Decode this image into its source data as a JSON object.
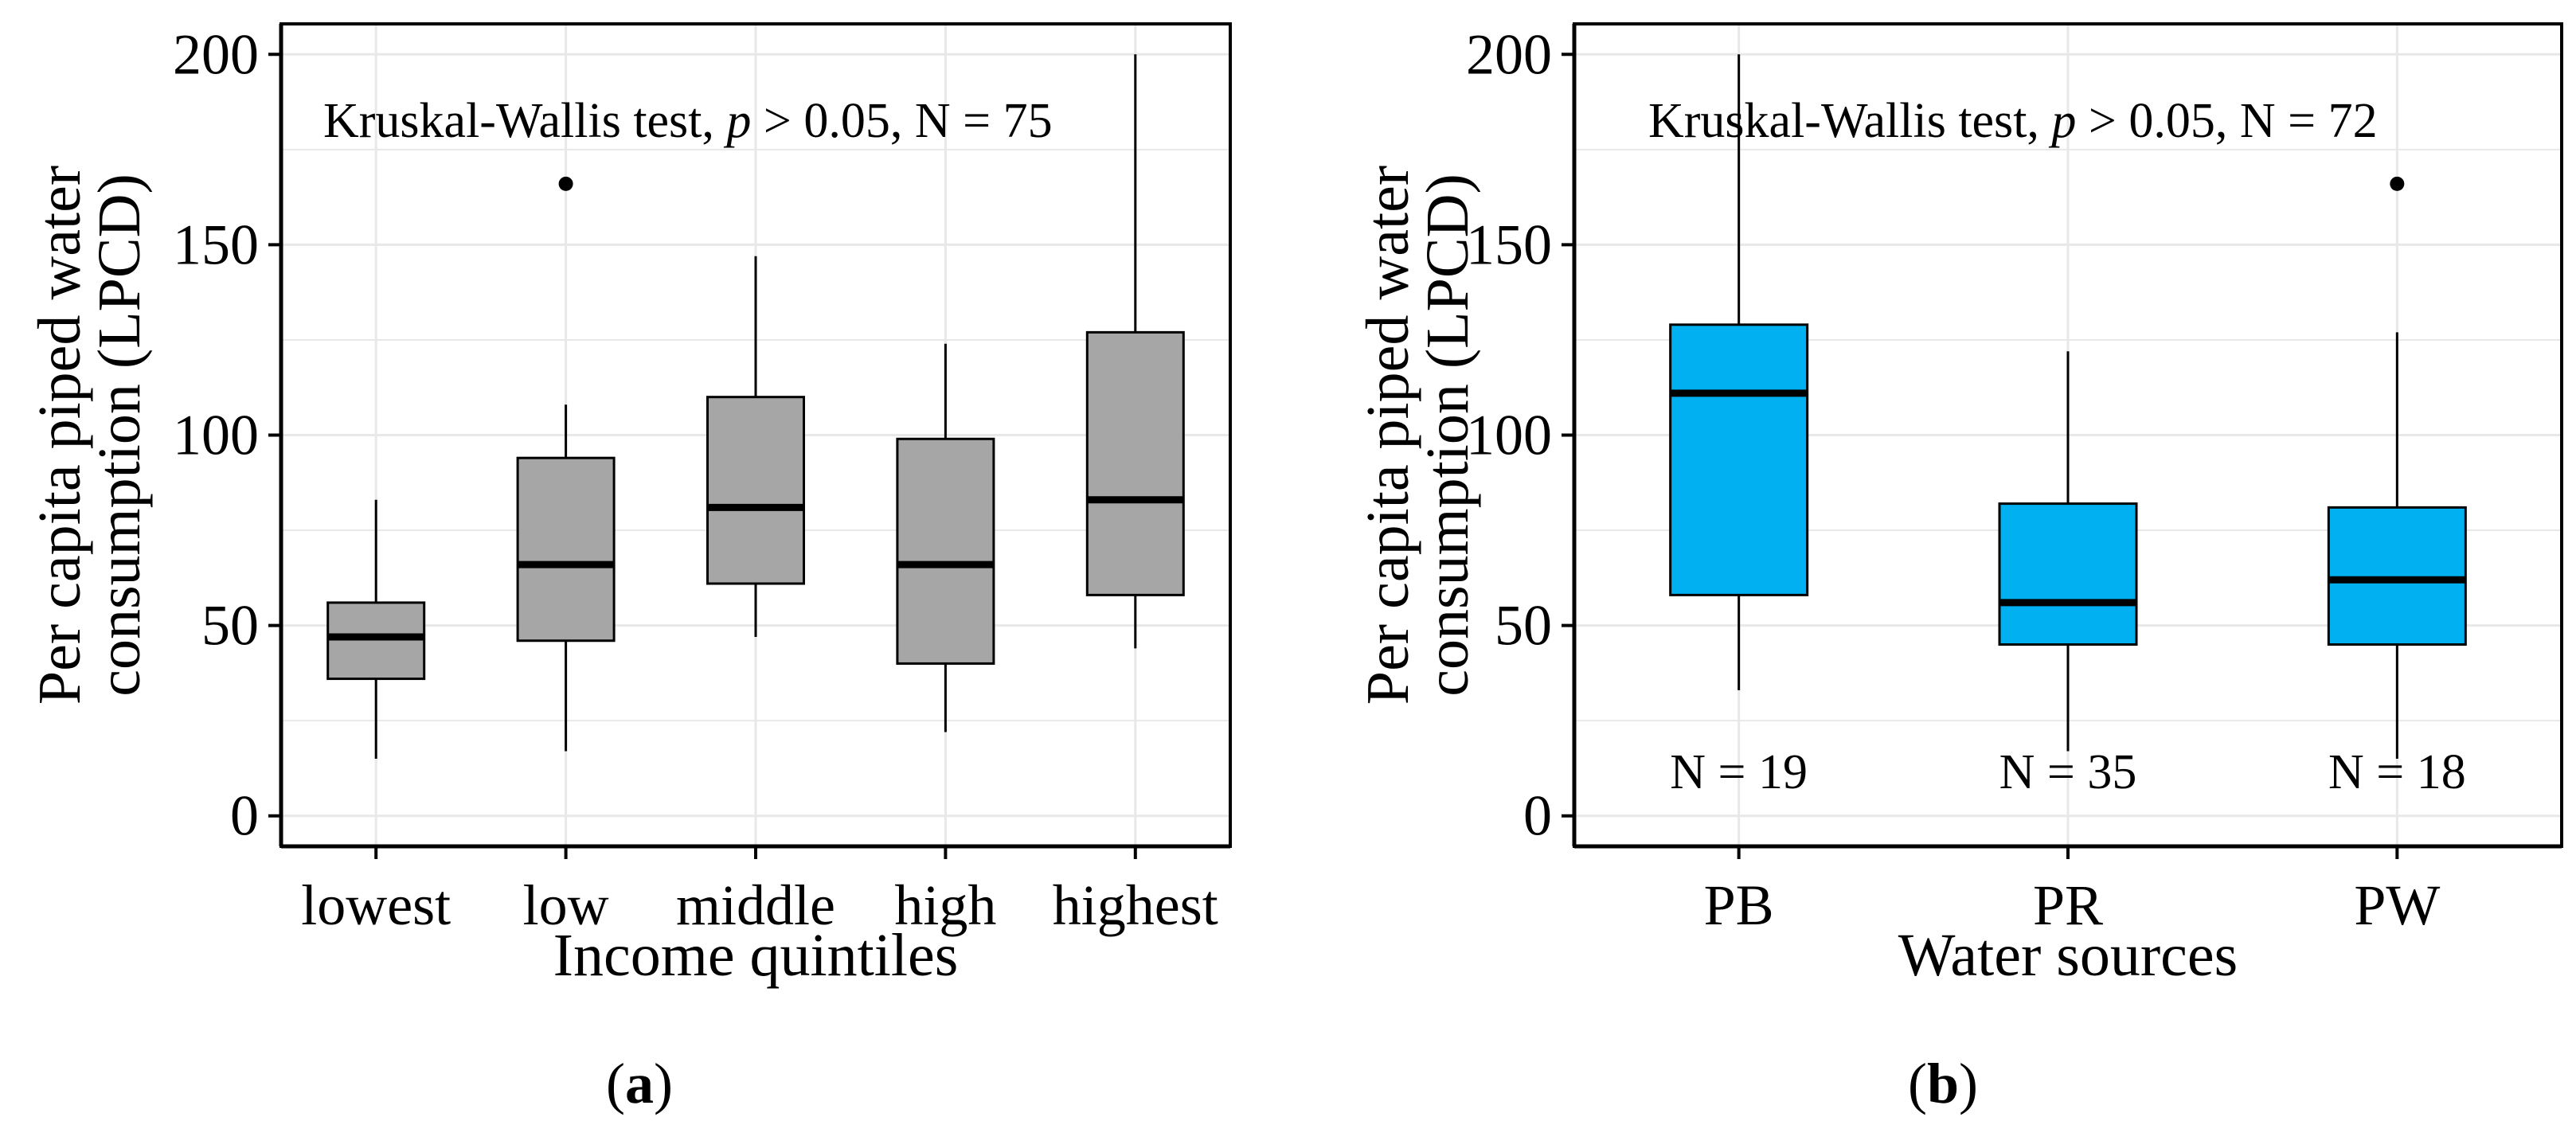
{
  "colors": {
    "grid": "#e8e8e8",
    "axis": "#000000",
    "panel_a_box": "#a6a6a6",
    "panel_b_box": "#00b0f0",
    "median": "#000000"
  },
  "chart_data": [
    {
      "type": "boxplot",
      "panel_label": "(a)",
      "panel_label_parts": [
        "(",
        "a",
        ")"
      ],
      "xlabel": "Income quintiles",
      "ylabel_lines": [
        "Per capita piped water",
        "consumption (LPCD)"
      ],
      "ylim": [
        -8,
        208
      ],
      "yticks": [
        0,
        50,
        100,
        150,
        200
      ],
      "ytick_labels": [
        "0",
        "50",
        "100",
        "150",
        "200"
      ],
      "grid": true,
      "annotation": {
        "prefix": "Kruskal-Wallis test, ",
        "p": "p",
        "suffix": " > 0.05, N = 75"
      },
      "categories": [
        "lowest",
        "low",
        "middle",
        "high",
        "highest"
      ],
      "boxes": [
        {
          "category": "lowest",
          "whisker_low": 15,
          "q1": 36,
          "median": 47,
          "q3": 56,
          "whisker_high": 83,
          "outliers": []
        },
        {
          "category": "low",
          "whisker_low": 17,
          "q1": 46,
          "median": 66,
          "q3": 94,
          "whisker_high": 108,
          "outliers": [
            166
          ]
        },
        {
          "category": "middle",
          "whisker_low": 47,
          "q1": 61,
          "median": 81,
          "q3": 110,
          "whisker_high": 147,
          "outliers": []
        },
        {
          "category": "high",
          "whisker_low": 22,
          "q1": 40,
          "median": 66,
          "q3": 99,
          "whisker_high": 124,
          "outliers": []
        },
        {
          "category": "highest",
          "whisker_low": 44,
          "q1": 58,
          "median": 83,
          "q3": 127,
          "whisker_high": 200,
          "outliers": []
        }
      ],
      "group_counts": []
    },
    {
      "type": "boxplot",
      "panel_label": "(b)",
      "panel_label_parts": [
        "(",
        "b",
        ")"
      ],
      "xlabel": "Water sources",
      "ylabel_lines": [
        "Per capita piped water",
        "consumption (LPCD)"
      ],
      "ylim": [
        -8,
        208
      ],
      "yticks": [
        0,
        50,
        100,
        150,
        200
      ],
      "ytick_labels": [
        "0",
        "50",
        "100",
        "150",
        "200"
      ],
      "grid": true,
      "annotation": {
        "prefix": "Kruskal-Wallis test, ",
        "p": "p",
        "suffix": " > 0.05, N = 72"
      },
      "categories": [
        "PB",
        "PR",
        "PW"
      ],
      "boxes": [
        {
          "category": "PB",
          "whisker_low": 33,
          "q1": 58,
          "median": 111,
          "q3": 129,
          "whisker_high": 200,
          "outliers": []
        },
        {
          "category": "PR",
          "whisker_low": 17,
          "q1": 45,
          "median": 56,
          "q3": 82,
          "whisker_high": 122,
          "outliers": []
        },
        {
          "category": "PW",
          "whisker_low": 15,
          "q1": 45,
          "median": 62,
          "q3": 81,
          "whisker_high": 127,
          "outliers": [
            166
          ]
        }
      ],
      "group_counts": [
        "N = 19",
        "N = 35",
        "N = 18"
      ],
      "group_count_value": 6
    }
  ]
}
